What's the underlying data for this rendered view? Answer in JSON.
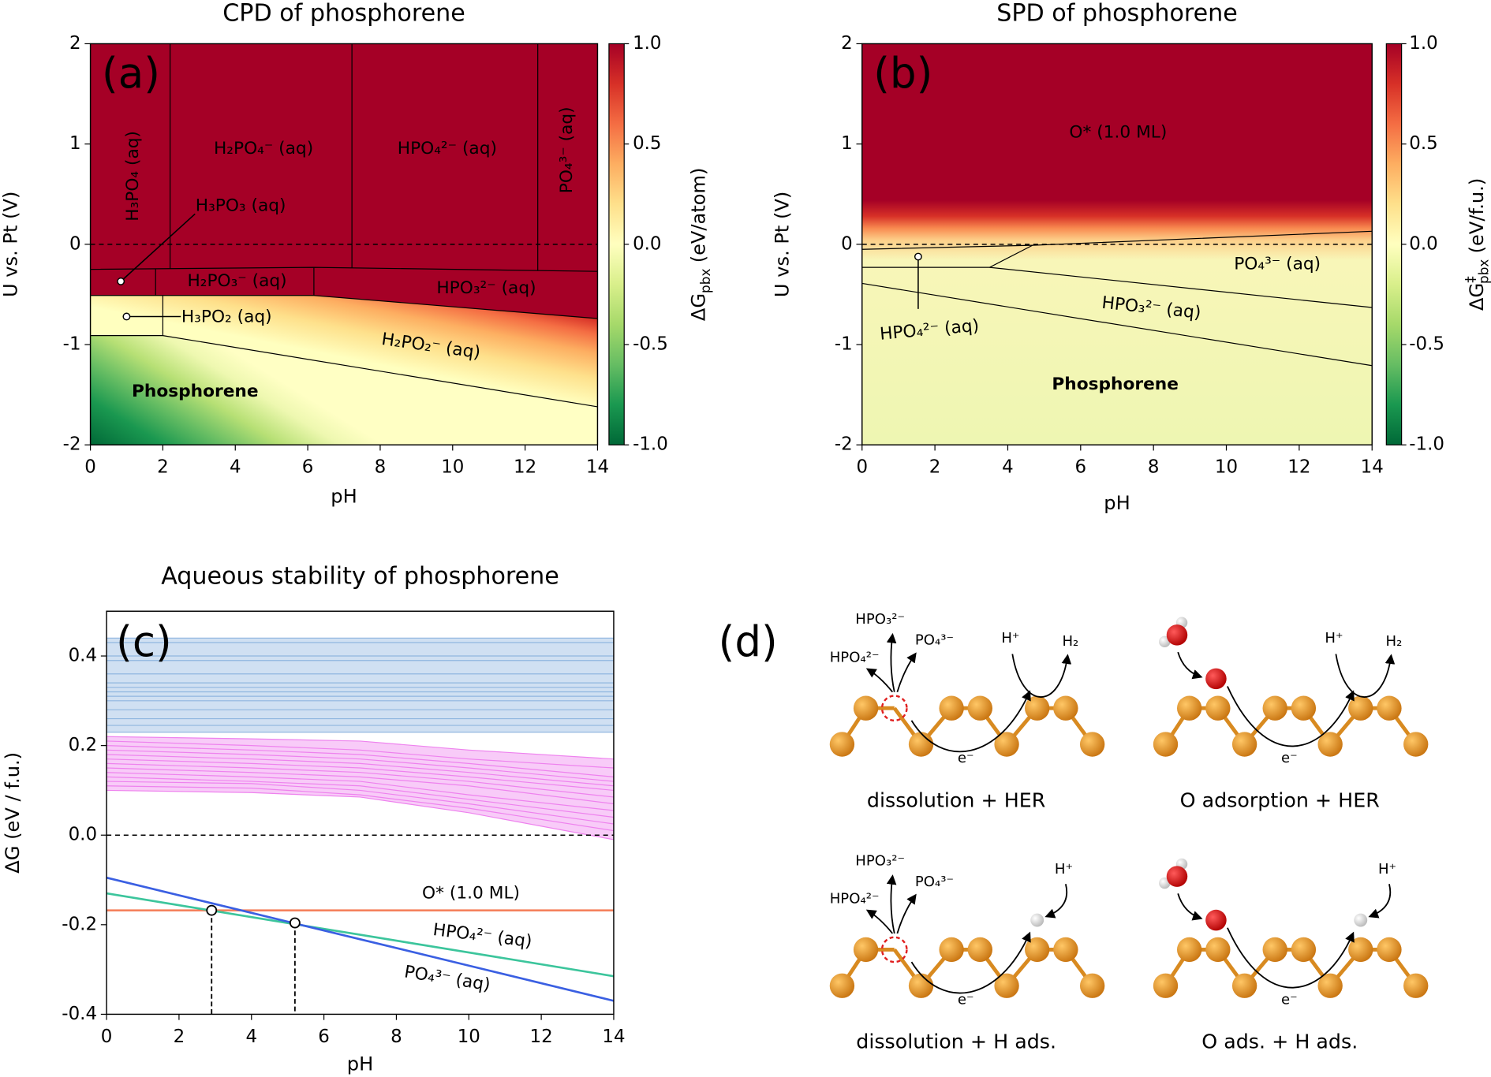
{
  "chart_data": [
    {
      "type": "phase",
      "title": "CPD of phosphorene",
      "panel_label": "(a)",
      "xlabel": "pH",
      "ylabel": "U vs. Pt (V)",
      "xlim": [
        0,
        14
      ],
      "xticks": [
        0,
        2,
        4,
        6,
        8,
        10,
        12,
        14
      ],
      "ylim": [
        -2,
        2
      ],
      "yticks": [
        -2,
        -1,
        0,
        1,
        2
      ],
      "reference_line": 0,
      "colormap": "RdYlGn",
      "clim": [
        -1,
        1
      ],
      "cticks": [
        {
          "value": 1,
          "label": "1.0"
        },
        0.5,
        {
          "value": 0,
          "label": "0.0"
        },
        -0.5,
        {
          "value": -1,
          "label": "-1.0"
        }
      ],
      "colorbar_label": {
        "symbol": "ΔG",
        "subscript": "pbx",
        "unit": "(eV/atom)"
      },
      "regions": [
        "H₃PO₄ (aq)",
        "H₂PO₄⁻ (aq)",
        "HPO₄²⁻ (aq)",
        "PO₄³⁻ (aq)",
        "H₃PO₃ (aq)",
        "H₂PO₃⁻ (aq)",
        "HPO₃²⁻ (aq)",
        "H₃PO₂ (aq)",
        "H₂PO₂⁻ (aq)",
        "Phosphorene"
      ],
      "boundaries": [
        {
          "x": [
            0,
            6.17,
            14
          ],
          "values": [
            -0.51,
            -0.51,
            -0.74
          ]
        },
        {
          "x": [
            0,
            2,
            14
          ],
          "values": [
            -0.91,
            -0.91,
            -1.62
          ]
        },
        {
          "x": [
            0,
            6.17,
            14
          ],
          "values": [
            -0.25,
            -0.23,
            -0.27
          ]
        },
        {
          "x": [
            2.2,
            2.2
          ],
          "values": [
            2,
            -0.243
          ]
        },
        {
          "x": [
            7.22,
            7.22
          ],
          "values": [
            2,
            -0.235
          ]
        },
        {
          "x": [
            12.35,
            12.35
          ],
          "values": [
            2,
            -0.262
          ]
        },
        {
          "x": [
            1.8,
            1.8
          ],
          "values": [
            -0.244,
            -0.51
          ]
        },
        {
          "x": [
            6.17,
            6.17
          ],
          "values": [
            -0.23,
            -0.51
          ]
        },
        {
          "x": [
            2,
            2
          ],
          "values": [
            -0.51,
            -0.91
          ]
        }
      ]
    },
    {
      "type": "phase",
      "title": "SPD of phosphorene",
      "panel_label": "(b)",
      "xlabel": "pH",
      "ylabel": "U vs. Pt (V)",
      "xlim": [
        0,
        14
      ],
      "xticks": [
        0,
        2,
        4,
        6,
        8,
        10,
        12,
        14
      ],
      "ylim": [
        -2,
        2
      ],
      "yticks": [
        -2,
        -1,
        0,
        1,
        2
      ],
      "reference_line": 0,
      "colormap": "RdYlGn",
      "clim": [
        -1,
        1
      ],
      "cticks": [
        {
          "value": 1,
          "label": "1.0"
        },
        0.5,
        {
          "value": 0,
          "label": "0.0"
        },
        -0.5,
        {
          "value": -1,
          "label": "-1.0"
        }
      ],
      "colorbar_label": {
        "symbol": "ΔG",
        "superscript": "‡",
        "subscript": "pbx",
        "unit": "(eV/f.u.)"
      },
      "regions": [
        "O* (1.0 ML)",
        "PO₄³⁻ (aq)",
        "HPO₃²⁻ (aq)",
        "HPO₄²⁻ (aq)",
        "Phosphorene"
      ],
      "boundaries": [
        {
          "x": [
            0,
            4.68,
            14
          ],
          "values": [
            -0.05,
            -0.01,
            0.13
          ]
        },
        {
          "x": [
            0,
            3.5,
            4.68
          ],
          "values": [
            -0.23,
            -0.23,
            -0.01
          ]
        },
        {
          "x": [
            3.5,
            14
          ],
          "values": [
            -0.23,
            -0.63
          ]
        },
        {
          "x": [
            0,
            14
          ],
          "values": [
            -0.39,
            -1.21
          ]
        }
      ]
    },
    {
      "type": "line",
      "title": "Aqueous stability of phosphorene",
      "panel_label": "(c)",
      "xlabel": "pH",
      "ylabel": "ΔG (eV / f.u.)",
      "x": [
        0,
        4,
        7,
        10,
        14
      ],
      "xlim": [
        0,
        14
      ],
      "xticks": [
        0,
        2,
        4,
        6,
        8,
        10,
        12,
        14
      ],
      "ylim": [
        -0.4,
        0.5
      ],
      "yticks": [
        -0.4,
        -0.2,
        {
          "value": 0,
          "label": "0.0"
        },
        0.2,
        0.4
      ],
      "reference_line": 0,
      "series": [
        {
          "color": "#8fb6df",
          "values": [
            0.44,
            0.44,
            0.44,
            0.44,
            0.44
          ]
        },
        {
          "color": "#8fb6df",
          "values": [
            0.43,
            0.43,
            0.43,
            0.43,
            0.43
          ]
        },
        {
          "color": "#8fb6df",
          "values": [
            0.4,
            0.4,
            0.4,
            0.4,
            0.4
          ]
        },
        {
          "color": "#8fb6df",
          "values": [
            0.39,
            0.39,
            0.39,
            0.39,
            0.39
          ]
        },
        {
          "color": "#8fb6df",
          "values": [
            0.36,
            0.36,
            0.36,
            0.36,
            0.36
          ]
        },
        {
          "color": "#8fb6df",
          "values": [
            0.34,
            0.34,
            0.34,
            0.34,
            0.34
          ]
        },
        {
          "color": "#8fb6df",
          "values": [
            0.33,
            0.33,
            0.33,
            0.33,
            0.33
          ]
        },
        {
          "color": "#8fb6df",
          "values": [
            0.32,
            0.32,
            0.32,
            0.32,
            0.32
          ]
        },
        {
          "color": "#8fb6df",
          "values": [
            0.31,
            0.31,
            0.31,
            0.31,
            0.31
          ]
        },
        {
          "color": "#8fb6df",
          "values": [
            0.3,
            0.3,
            0.3,
            0.3,
            0.3
          ]
        },
        {
          "color": "#8fb6df",
          "values": [
            0.28,
            0.28,
            0.28,
            0.28,
            0.28
          ]
        },
        {
          "color": "#8fb6df",
          "values": [
            0.26,
            0.26,
            0.26,
            0.26,
            0.26
          ]
        },
        {
          "color": "#8fb6df",
          "values": [
            0.245,
            0.245,
            0.245,
            0.245,
            0.245
          ]
        },
        {
          "color": "#8fb6df",
          "values": [
            0.23,
            0.23,
            0.23,
            0.23,
            0.23
          ]
        },
        {
          "color": "#ee82ee",
          "values": [
            0.22,
            0.215,
            0.21,
            0.19,
            0.17
          ]
        },
        {
          "color": "#ee82ee",
          "values": [
            0.21,
            0.2,
            0.19,
            0.17,
            0.15
          ]
        },
        {
          "color": "#ee82ee",
          "values": [
            0.2,
            0.19,
            0.18,
            0.16,
            0.13
          ]
        },
        {
          "color": "#ee82ee",
          "values": [
            0.19,
            0.18,
            0.17,
            0.15,
            0.12
          ]
        },
        {
          "color": "#ee82ee",
          "values": [
            0.18,
            0.17,
            0.16,
            0.14,
            0.11
          ]
        },
        {
          "color": "#ee82ee",
          "values": [
            0.17,
            0.16,
            0.15,
            0.13,
            0.1
          ]
        },
        {
          "color": "#ee82ee",
          "values": [
            0.16,
            0.15,
            0.14,
            0.12,
            0.085
          ]
        },
        {
          "color": "#ee82ee",
          "values": [
            0.15,
            0.14,
            0.13,
            0.11,
            0.07
          ]
        },
        {
          "color": "#ee82ee",
          "values": [
            0.14,
            0.13,
            0.12,
            0.09,
            0.055
          ]
        },
        {
          "color": "#ee82ee",
          "values": [
            0.13,
            0.12,
            0.11,
            0.08,
            0.04
          ]
        },
        {
          "color": "#ee82ee",
          "values": [
            0.12,
            0.115,
            0.1,
            0.07,
            0.025
          ]
        },
        {
          "color": "#ee82ee",
          "values": [
            0.11,
            0.105,
            0.09,
            0.06,
            0.01
          ]
        },
        {
          "color": "#ee82ee",
          "values": [
            0.1,
            0.095,
            0.085,
            0.05,
            -0.01
          ]
        },
        {
          "name": "O* (1.0 ML)",
          "color": "#f5805c",
          "values": [
            -0.168,
            -0.168,
            -0.168,
            -0.168,
            -0.168
          ]
        },
        {
          "name": "HPO₄²⁻ (aq)",
          "color": "#3cc59c",
          "values": [
            -0.13,
            -0.183,
            -0.2225,
            -0.262,
            -0.315
          ]
        },
        {
          "name": "PO₄³⁻ (aq)",
          "color": "#3a5fe2",
          "values": [
            -0.095,
            -0.1736,
            -0.2325,
            -0.2914,
            -0.37
          ]
        }
      ],
      "intersections": {
        "x": [
          2.9,
          5.2
        ],
        "values": [
          -0.168,
          -0.196
        ]
      }
    }
  ],
  "schematic": {
    "panel_label": "(d)",
    "panels": [
      {
        "caption": "dissolution + HER",
        "products": [
          "HPO₃²⁻",
          "PO₄³⁻",
          "HPO₄²⁻"
        ],
        "proton": "H⁺",
        "hydrogen": "H₂",
        "electron": "e⁻"
      },
      {
        "caption": "O adsorption + HER",
        "proton": "H⁺",
        "hydrogen": "H₂",
        "electron": "e⁻"
      },
      {
        "caption": "dissolution + H ads.",
        "products": [
          "HPO₃²⁻",
          "PO₄³⁻",
          "HPO₄²⁻"
        ],
        "proton": "H⁺",
        "electron": "e⁻"
      },
      {
        "caption": "O ads. + H ads.",
        "proton": "H⁺",
        "electron": "e⁻"
      }
    ]
  }
}
